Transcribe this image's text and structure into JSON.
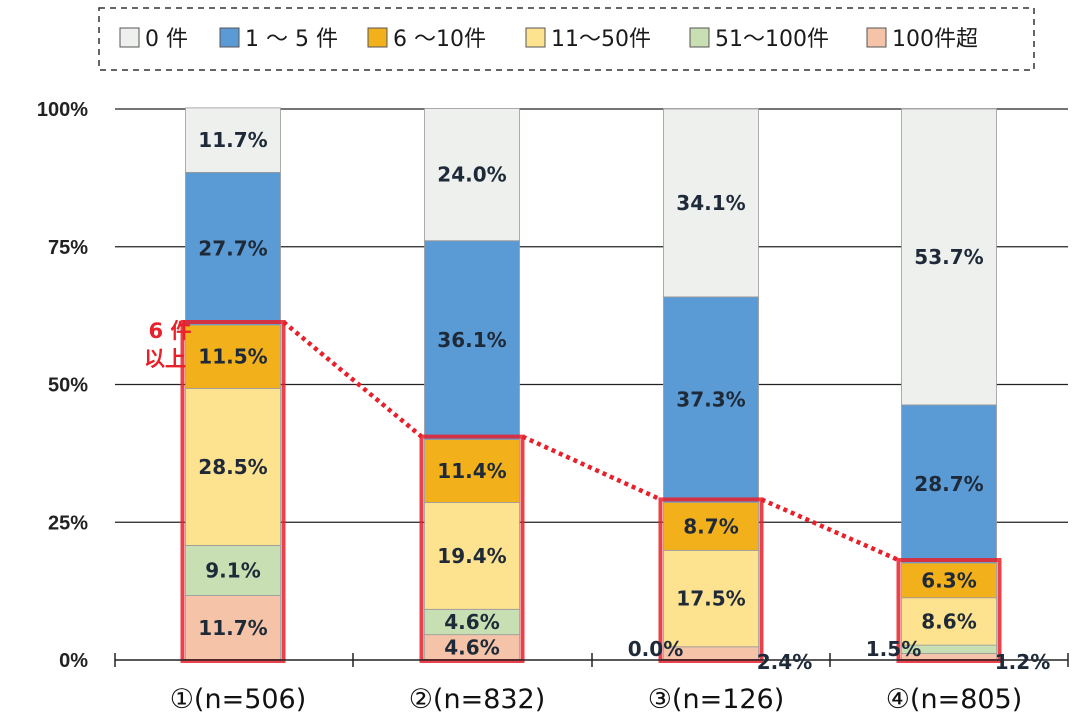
{
  "chart_data": {
    "type": "bar",
    "stacked": true,
    "title": "",
    "xlabel": "",
    "ylabel": "",
    "ylim": [
      0,
      100
    ],
    "y_ticks": [
      "0%",
      "25%",
      "50%",
      "75%",
      "100%"
    ],
    "grid": true,
    "legend_position": "top",
    "categories": [
      "①(n=506)",
      "②(n=832)",
      "③(n=126)",
      "④(n=805)"
    ],
    "series": [
      {
        "name": "100件超",
        "color": "#f4c3a8",
        "values": [
          11.7,
          4.6,
          2.4,
          1.2
        ],
        "labels": [
          "11.7%",
          "4.6%",
          "2.4%",
          "1.2%"
        ]
      },
      {
        "name": "51〜100件",
        "color": "#c7dfb3",
        "values": [
          9.1,
          4.6,
          0.0,
          1.5
        ],
        "labels": [
          "9.1%",
          "4.6%",
          "0.0%",
          "1.5%"
        ]
      },
      {
        "name": "11〜50件",
        "color": "#fde28f",
        "values": [
          28.5,
          19.4,
          17.5,
          8.6
        ],
        "labels": [
          "28.5%",
          "19.4%",
          "17.5%",
          "8.6%"
        ]
      },
      {
        "name": "6 〜10件",
        "color": "#f2b01b",
        "values": [
          11.5,
          11.4,
          8.7,
          6.3
        ],
        "labels": [
          "11.5%",
          "11.4%",
          "8.7%",
          "6.3%"
        ]
      },
      {
        "name": "1 〜 5 件",
        "color": "#5b9bd5",
        "values": [
          27.7,
          36.1,
          37.3,
          28.7
        ],
        "labels": [
          "27.7%",
          "36.1%",
          "37.3%",
          "28.7%"
        ]
      },
      {
        "name": "0 件",
        "color": "#eef0ee",
        "values": [
          11.7,
          24.0,
          34.1,
          53.7
        ],
        "labels": [
          "11.7%",
          "24.0%",
          "34.1%",
          "53.7%"
        ]
      }
    ],
    "legend_order": [
      "0 件",
      "1 〜 5 件",
      "6 〜10件",
      "11〜50件",
      "51〜100件",
      "100件超"
    ],
    "highlight": {
      "label_line1": "6 件",
      "label_line2": "以上",
      "color": "#e8202a"
    }
  }
}
